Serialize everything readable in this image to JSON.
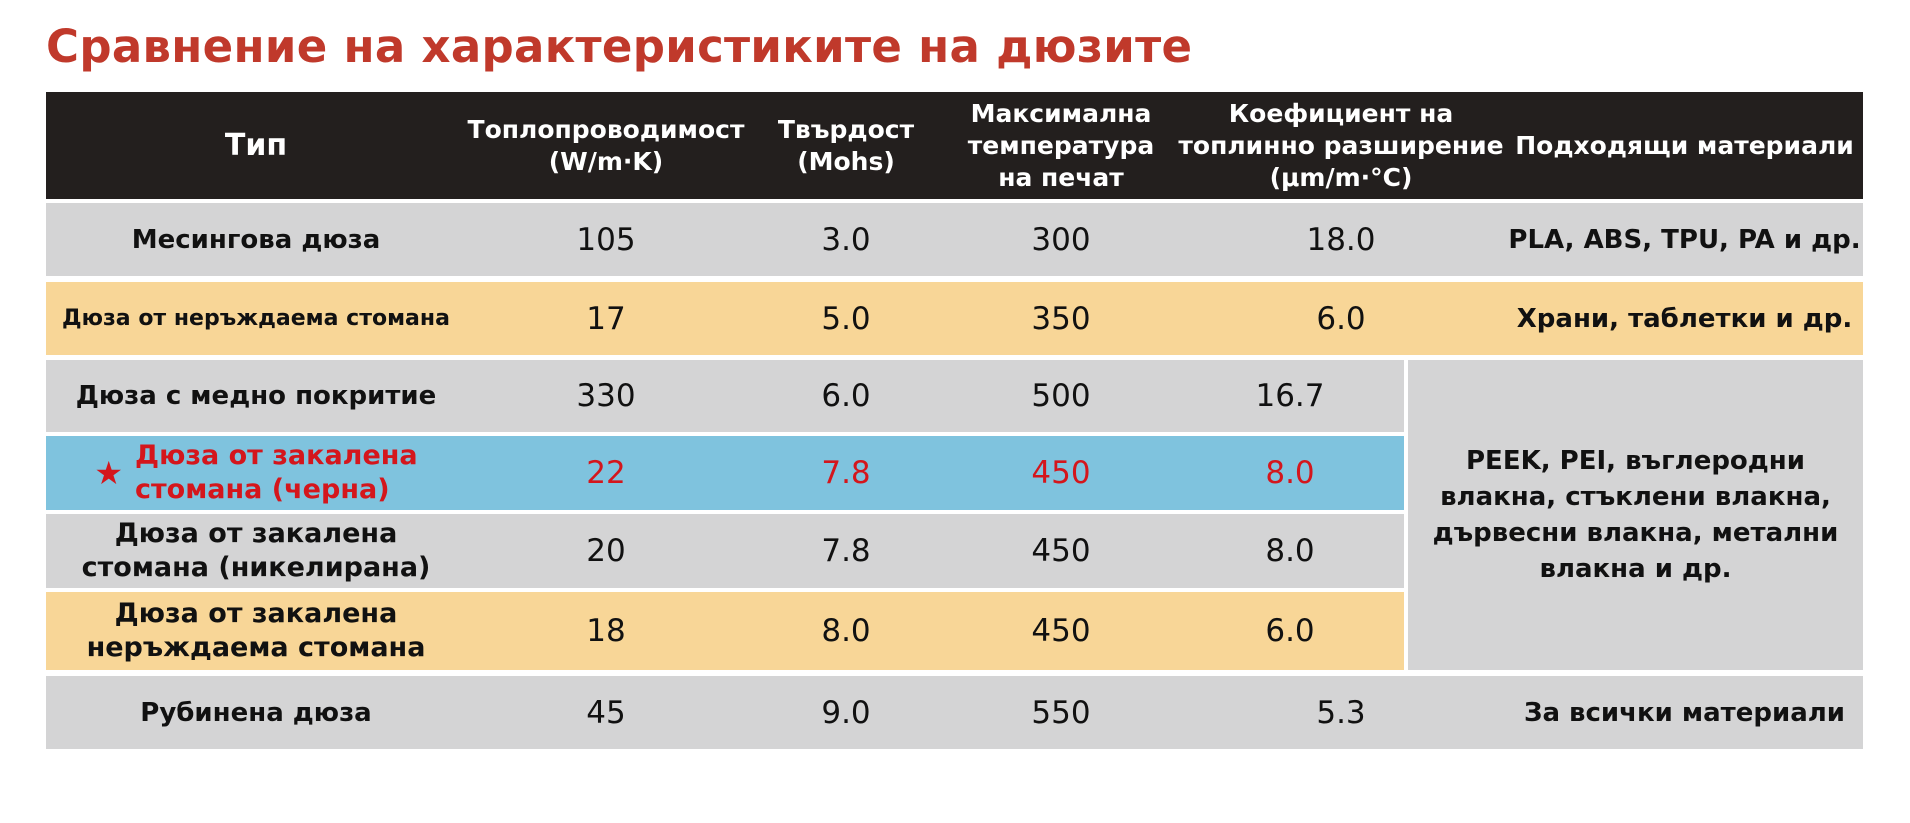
{
  "title": "Сравнение на характеристиките на дюзите",
  "headers": {
    "type": "Тип",
    "conductivity": [
      "Топлопроводимост",
      "(W/m·K)"
    ],
    "hardness": [
      "Твърдост",
      "(Mohs)"
    ],
    "max_temp": [
      "Максимална",
      "температура",
      "на печат"
    ],
    "expansion": [
      "Коефициент на",
      "топлинно разширение",
      "(μm/m·°C)"
    ],
    "materials": "Подходящи материали"
  },
  "rows": [
    {
      "name": [
        "Месингова дюза"
      ],
      "conductivity": "105",
      "hardness": "3.0",
      "max_temp": "300",
      "expansion": "18.0",
      "materials": "PLA, ABS, TPU, PA и др."
    },
    {
      "name": [
        "Дюза от неръждаема стомана"
      ],
      "conductivity": "17",
      "hardness": "5.0",
      "max_temp": "350",
      "expansion": "6.0",
      "materials": "Храни, таблетки и др."
    },
    {
      "name": [
        "Дюза с медно покритие"
      ],
      "conductivity": "330",
      "hardness": "6.0",
      "max_temp": "500",
      "expansion": "16.7"
    },
    {
      "name": [
        "Дюза от закалена",
        "стомана (черна)"
      ],
      "highlight_mark": "★",
      "conductivity": "22",
      "hardness": "7.8",
      "max_temp": "450",
      "expansion": "8.0"
    },
    {
      "name": [
        "Дюза от закалена",
        "стомана (никелирана)"
      ],
      "conductivity": "20",
      "hardness": "7.8",
      "max_temp": "450",
      "expansion": "8.0"
    },
    {
      "name": [
        "Дюза от закалена",
        "неръждаема стомана"
      ],
      "conductivity": "18",
      "hardness": "8.0",
      "max_temp": "450",
      "expansion": "6.0"
    },
    {
      "name": [
        "Рубинена дюза"
      ],
      "conductivity": "45",
      "hardness": "9.0",
      "max_temp": "550",
      "expansion": "5.3",
      "materials": "За всички материали"
    }
  ],
  "merged_materials": [
    "PEEK, PEI, въглеродни",
    "влакна, стъклени влакна,",
    "дървесни влакна, метални",
    "влакна и др."
  ],
  "colors": {
    "title": "#c0392b",
    "header_bg": "#231f1e",
    "gray": "#d4d4d5",
    "amber": "#f8d697",
    "blue": "#7fc3de",
    "highlight_text": "#d4161c"
  }
}
